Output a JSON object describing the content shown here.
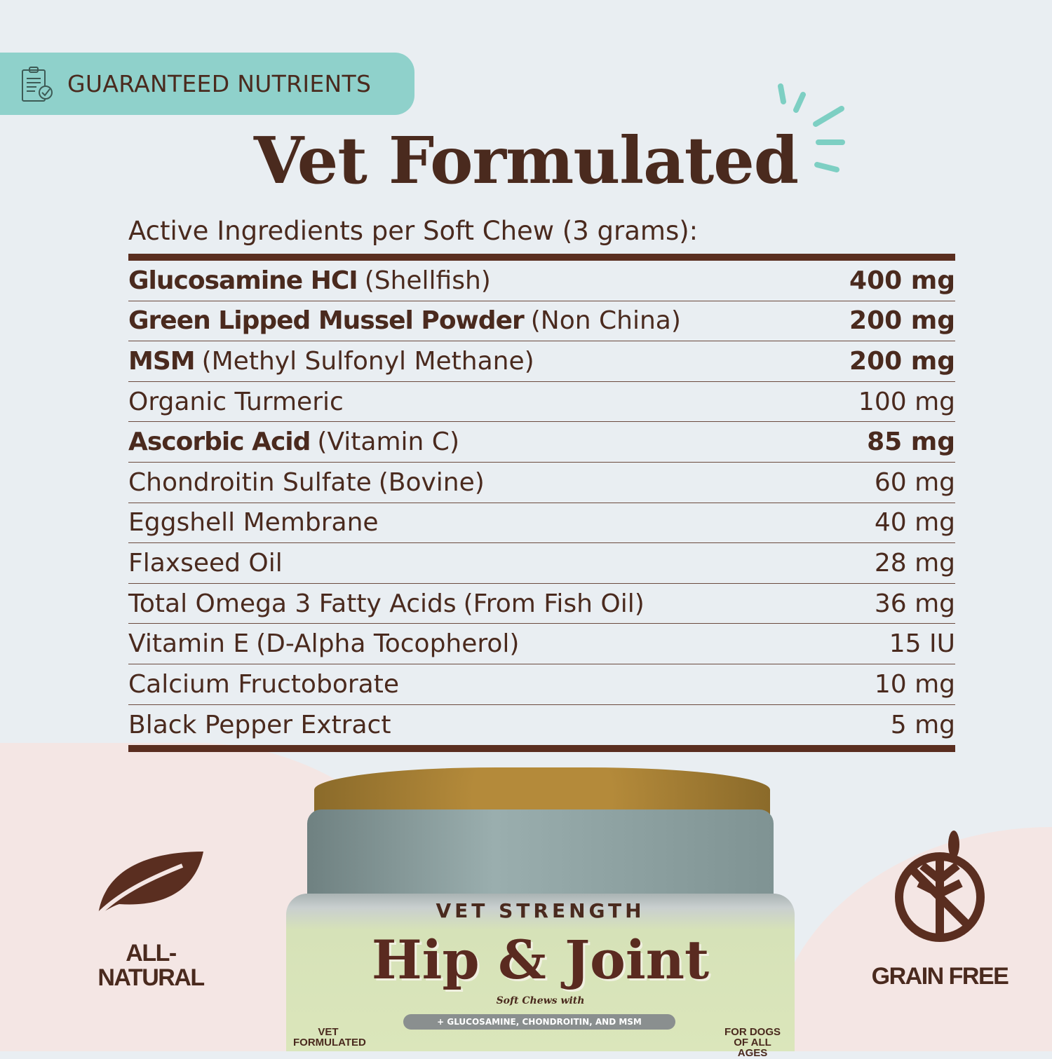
{
  "badge": {
    "label": "GUARANTEED NUTRIENTS",
    "icon": "clipboard-check-icon"
  },
  "title": "Vet Formulated",
  "subheading": "Active Ingredients per Soft Chew (3 grams):",
  "ingredients": [
    {
      "name": "Glucosamine HCI",
      "detail": "(Shellfish)",
      "amount": "400 mg",
      "bold": true
    },
    {
      "name": "Green Lipped Mussel Powder",
      "detail": "(Non China)",
      "amount": "200 mg",
      "bold": true
    },
    {
      "name": "MSM",
      "detail": "(Methyl Sulfonyl Methane)",
      "amount": "200 mg",
      "bold": true
    },
    {
      "name": "Organic Turmeric",
      "detail": "",
      "amount": "100 mg",
      "bold": false
    },
    {
      "name": "Ascorbic Acid",
      "detail": "(Vitamin C)",
      "amount": "85 mg",
      "bold": true
    },
    {
      "name": "Chondroitin Sulfate",
      "detail": "(Bovine)",
      "amount": "60 mg",
      "bold": false
    },
    {
      "name": "Eggshell Membrane",
      "detail": "",
      "amount": "40 mg",
      "bold": false
    },
    {
      "name": "Flaxseed Oil",
      "detail": "",
      "amount": "28 mg",
      "bold": false
    },
    {
      "name": "Total Omega 3 Fatty Acids",
      "detail": "(From Fish Oil)",
      "amount": "36 mg",
      "bold": false
    },
    {
      "name": "Vitamin E",
      "detail": "(D-Alpha Tocopherol)",
      "amount": "15 IU",
      "bold": false
    },
    {
      "name": "Calcium Fructoborate",
      "detail": "",
      "amount": "10 mg",
      "bold": false
    },
    {
      "name": "Black Pepper Extract",
      "detail": "",
      "amount": "5 mg",
      "bold": false
    }
  ],
  "features": {
    "left": {
      "label": "ALL-\nNATURAL",
      "icon": "leaf-icon"
    },
    "right": {
      "label": "GRAIN FREE",
      "icon": "no-grain-icon"
    }
  },
  "jar": {
    "top": "VET STRENGTH",
    "name": "Hip & Joint",
    "tagline": "Soft Chews with",
    "pill": "+ GLUCOSAMINE, CHONDROITIN, AND MSM",
    "left_badge": "VET FORMULATED",
    "right_badge": "FOR DOGS OF ALL AGES"
  },
  "colors": {
    "brown": "#4a2a1e",
    "teal": "#8fd1cb",
    "background": "#e9eef2",
    "pink": "#f4e6e4"
  }
}
